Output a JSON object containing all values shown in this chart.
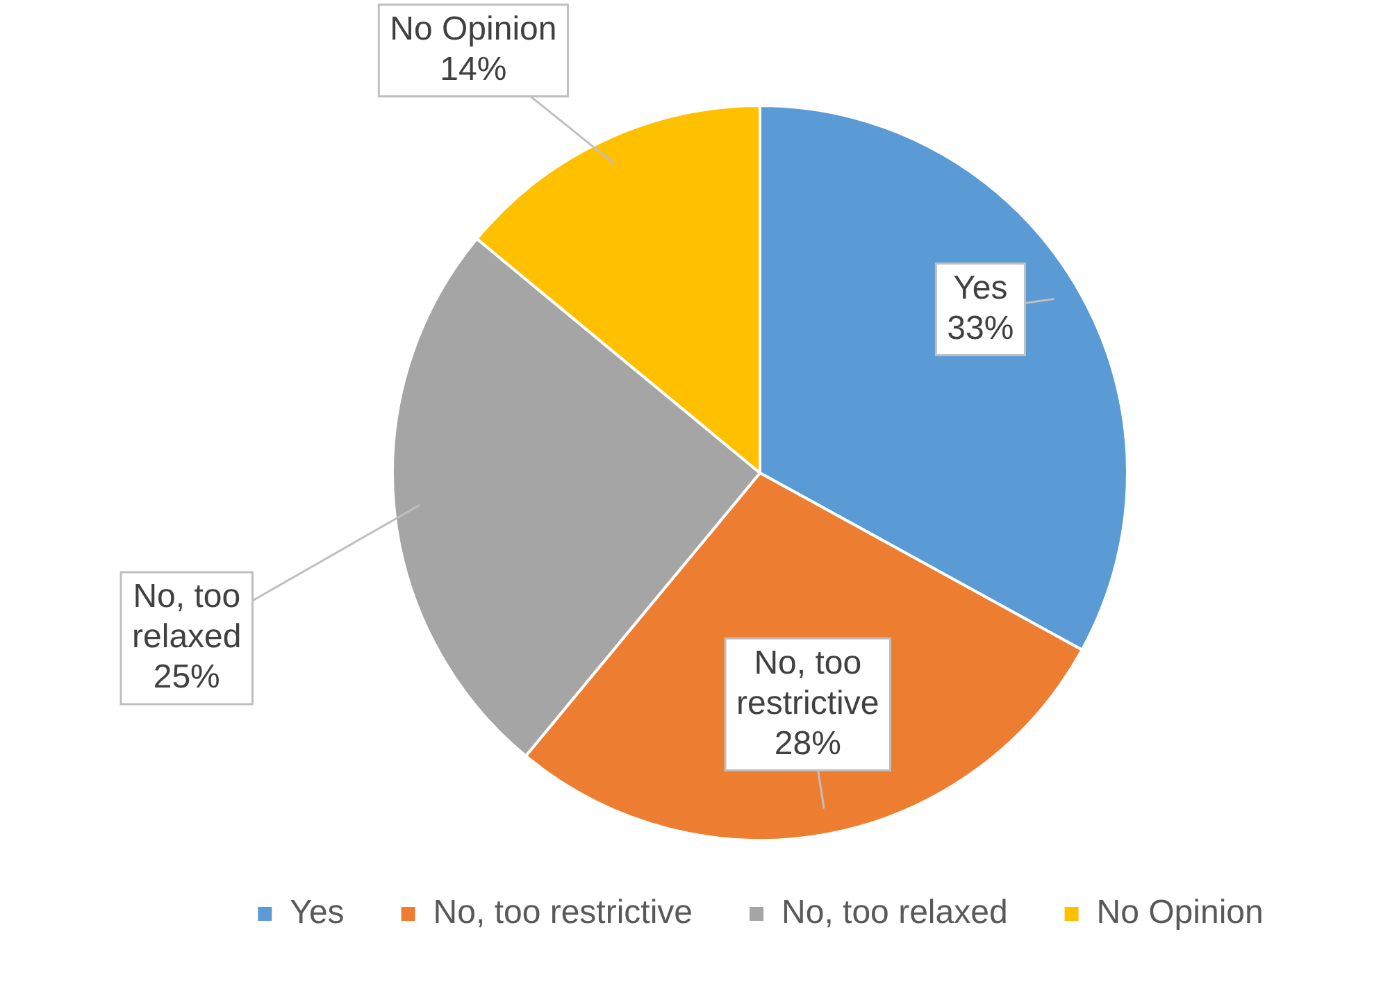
{
  "chart_data": {
    "type": "pie",
    "categories": [
      "Yes",
      "No, too restrictive",
      "No, too relaxed",
      "No Opinion"
    ],
    "values": [
      33,
      28,
      25,
      14
    ],
    "colors": [
      "#5b9bd5",
      "#ed7d31",
      "#a5a5a5",
      "#ffc000"
    ],
    "value_labels": [
      "33%",
      "28%",
      "25%",
      "14%"
    ],
    "legend": "bottom"
  }
}
